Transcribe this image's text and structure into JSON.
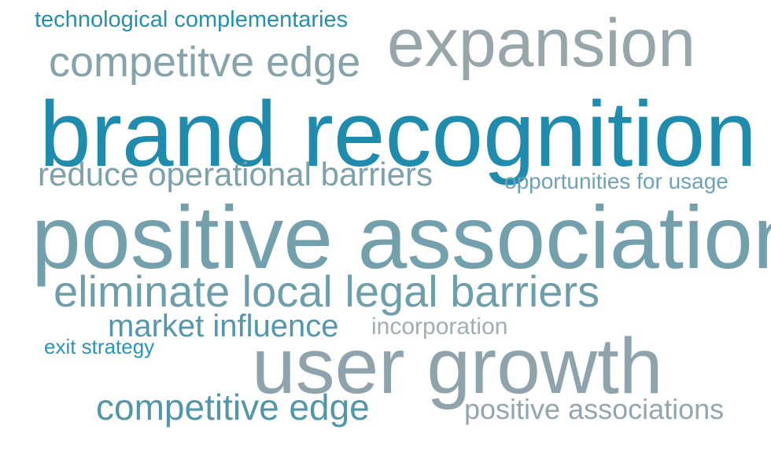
{
  "words": [
    {
      "text": "technological complementaries",
      "color": "#2590ad"
    },
    {
      "text": "competitve edge",
      "color": "#86a3ab"
    },
    {
      "text": "expansion",
      "color": "#97a6ab"
    },
    {
      "text": "brand recognition",
      "color": "#1f8bad"
    },
    {
      "text": "reduce operational barriers",
      "color": "#7ba1ad"
    },
    {
      "text": "opportunities for usage",
      "color": "#6ea2b4"
    },
    {
      "text": "positive association",
      "color": "#73a0ad"
    },
    {
      "text": "eliminate local legal barriers",
      "color": "#6d9eab"
    },
    {
      "text": "market influence",
      "color": "#5397ae"
    },
    {
      "text": "incorporation",
      "color": "#a0aeb2"
    },
    {
      "text": "exit strategy",
      "color": "#2596b8"
    },
    {
      "text": "user growth",
      "color": "#8ea3ab"
    },
    {
      "text": "competitive edge",
      "color": "#5296ab"
    },
    {
      "text": "positive associations",
      "color": "#92a6ad"
    }
  ]
}
